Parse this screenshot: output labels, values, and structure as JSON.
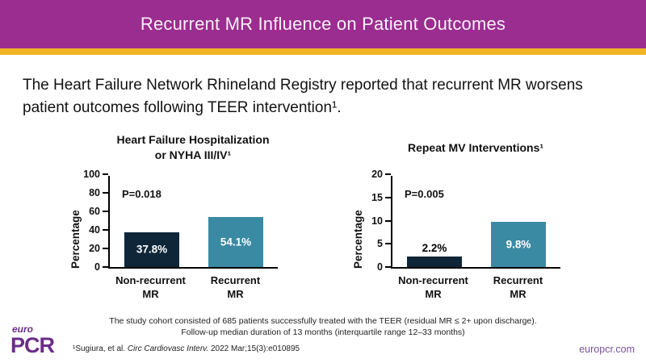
{
  "header": {
    "title": "Recurrent MR Influence on Patient Outcomes"
  },
  "intro": "The Heart Failure Network Rhineland Registry reported that recurrent MR worsens\npatient outcomes following TEER intervention¹.",
  "chart_data": [
    {
      "type": "bar",
      "title": "Heart Failure Hospitalization\nor NYHA III/IV¹",
      "ylabel": "Percentage",
      "xlabel": "",
      "ylim": [
        0,
        100
      ],
      "ymax": 100,
      "yticks": [
        0,
        20,
        40,
        60,
        80,
        100
      ],
      "grid": false,
      "legend": "none",
      "p_value": "P=0.018",
      "categories": [
        "Non-recurrent\nMR",
        "Recurrent\nMR"
      ],
      "values": [
        37.8,
        54.1
      ],
      "labels": [
        "37.8%",
        "54.1%"
      ],
      "bar_colors": [
        "#0E2638",
        "#3B8AA3"
      ]
    },
    {
      "type": "bar",
      "title": "Repeat MV Interventions¹",
      "ylabel": "Percentage",
      "xlabel": "",
      "ylim": [
        0,
        20
      ],
      "ymax": 20,
      "yticks": [
        0,
        5,
        10,
        15,
        20
      ],
      "grid": false,
      "legend": "none",
      "p_value": "P=0.005",
      "categories": [
        "Non-recurrent\nMR",
        "Recurrent\nMR"
      ],
      "values": [
        2.2,
        9.8
      ],
      "labels": [
        "2.2%",
        "9.8%"
      ],
      "bar_colors": [
        "#0E2638",
        "#3B8AA3"
      ]
    }
  ],
  "footnote": {
    "line1": "The study cohort consisted of 685 patients successfully treated with the TEER (residual MR ≤ 2+ upon discharge).",
    "line2": "Follow-up median duration of 13 months (interquartile range 12–33 months)"
  },
  "reference": {
    "prefix": "¹Sugiura, et al. ",
    "journal": "Circ Cardiovasc Interv.",
    "suffix": " 2022 Mar;15(3):e010895"
  },
  "footer": {
    "logo_top": "euro",
    "logo_main": "PCR",
    "website": "europcr.com"
  },
  "colors": {
    "header_bg": "#9A2D8F",
    "accent_stripe": "#F0B524",
    "bar_non_recurrent": "#0E2638",
    "bar_recurrent": "#3B8AA3",
    "logo_purple": "#6B2D87",
    "website_purple": "#77519E"
  }
}
